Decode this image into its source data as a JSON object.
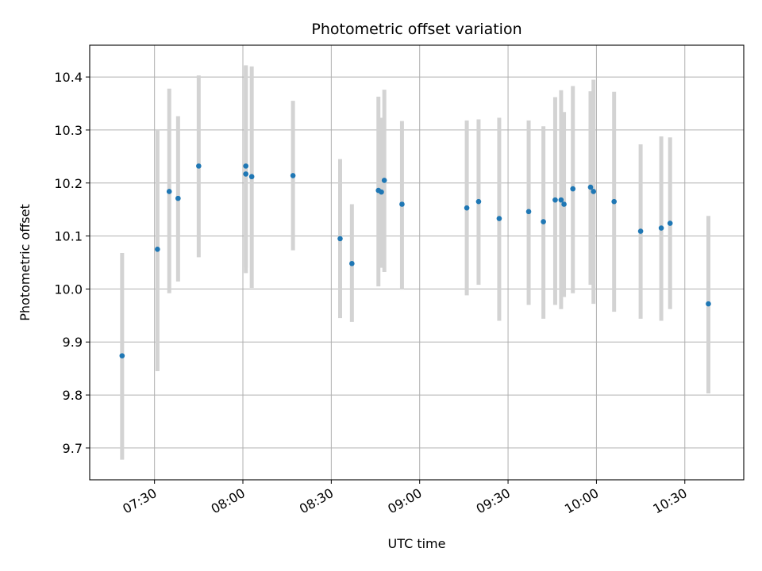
{
  "chart_data": {
    "type": "scatter",
    "title": "Photometric offset variation",
    "xlabel": "UTC time",
    "ylabel": "Photometric offset",
    "x_ticks": [
      "07:30",
      "08:00",
      "08:30",
      "09:00",
      "09:30",
      "10:00",
      "10:30"
    ],
    "y_ticks": [
      "9.7",
      "9.8",
      "9.9",
      "10.0",
      "10.1",
      "10.2",
      "10.3",
      "10.4"
    ],
    "ylim": [
      9.64,
      10.46
    ],
    "xlim": [
      "07:08",
      "10:50"
    ],
    "grid": true,
    "colors": {
      "point": "#1f77b4",
      "errorbar": "#d3d3d3",
      "grid": "#b0b0b0"
    },
    "series": [
      {
        "x": [
          "07:19",
          "07:31",
          "07:35",
          "07:38",
          "07:45",
          "08:01",
          "08:01",
          "08:03",
          "08:17",
          "08:33",
          "08:37",
          "08:46",
          "08:47",
          "08:48",
          "08:54",
          "09:16",
          "09:20",
          "09:27",
          "09:37",
          "09:42",
          "09:46",
          "09:48",
          "09:49",
          "09:52",
          "09:58",
          "09:59",
          "10:06",
          "10:15",
          "10:22",
          "10:25",
          "10:38"
        ],
        "y": [
          9.874,
          10.075,
          10.184,
          10.171,
          10.232,
          10.217,
          10.232,
          10.212,
          10.214,
          10.095,
          10.048,
          10.186,
          10.183,
          10.205,
          10.16,
          10.153,
          10.165,
          10.133,
          10.146,
          10.127,
          10.168,
          10.168,
          10.16,
          10.189,
          10.192,
          10.184,
          10.165,
          10.109,
          10.115,
          10.124,
          9.972
        ],
        "err_low": [
          9.678,
          9.845,
          9.992,
          10.014,
          10.06,
          10.03,
          10.04,
          10.002,
          10.073,
          9.945,
          9.938,
          10.005,
          10.04,
          10.032,
          9.999,
          9.988,
          10.008,
          9.94,
          9.97,
          9.944,
          9.97,
          9.962,
          9.985,
          9.992,
          10.008,
          9.972,
          9.957,
          9.944,
          9.94,
          9.962,
          9.803
        ],
        "err_high": [
          10.068,
          10.3,
          10.378,
          10.326,
          10.403,
          10.422,
          10.42,
          10.42,
          10.355,
          10.245,
          10.16,
          10.363,
          10.323,
          10.376,
          10.317,
          10.318,
          10.32,
          10.323,
          10.318,
          10.307,
          10.362,
          10.375,
          10.334,
          10.383,
          10.373,
          10.395,
          10.372,
          10.273,
          10.288,
          10.286,
          10.138
        ]
      }
    ]
  }
}
